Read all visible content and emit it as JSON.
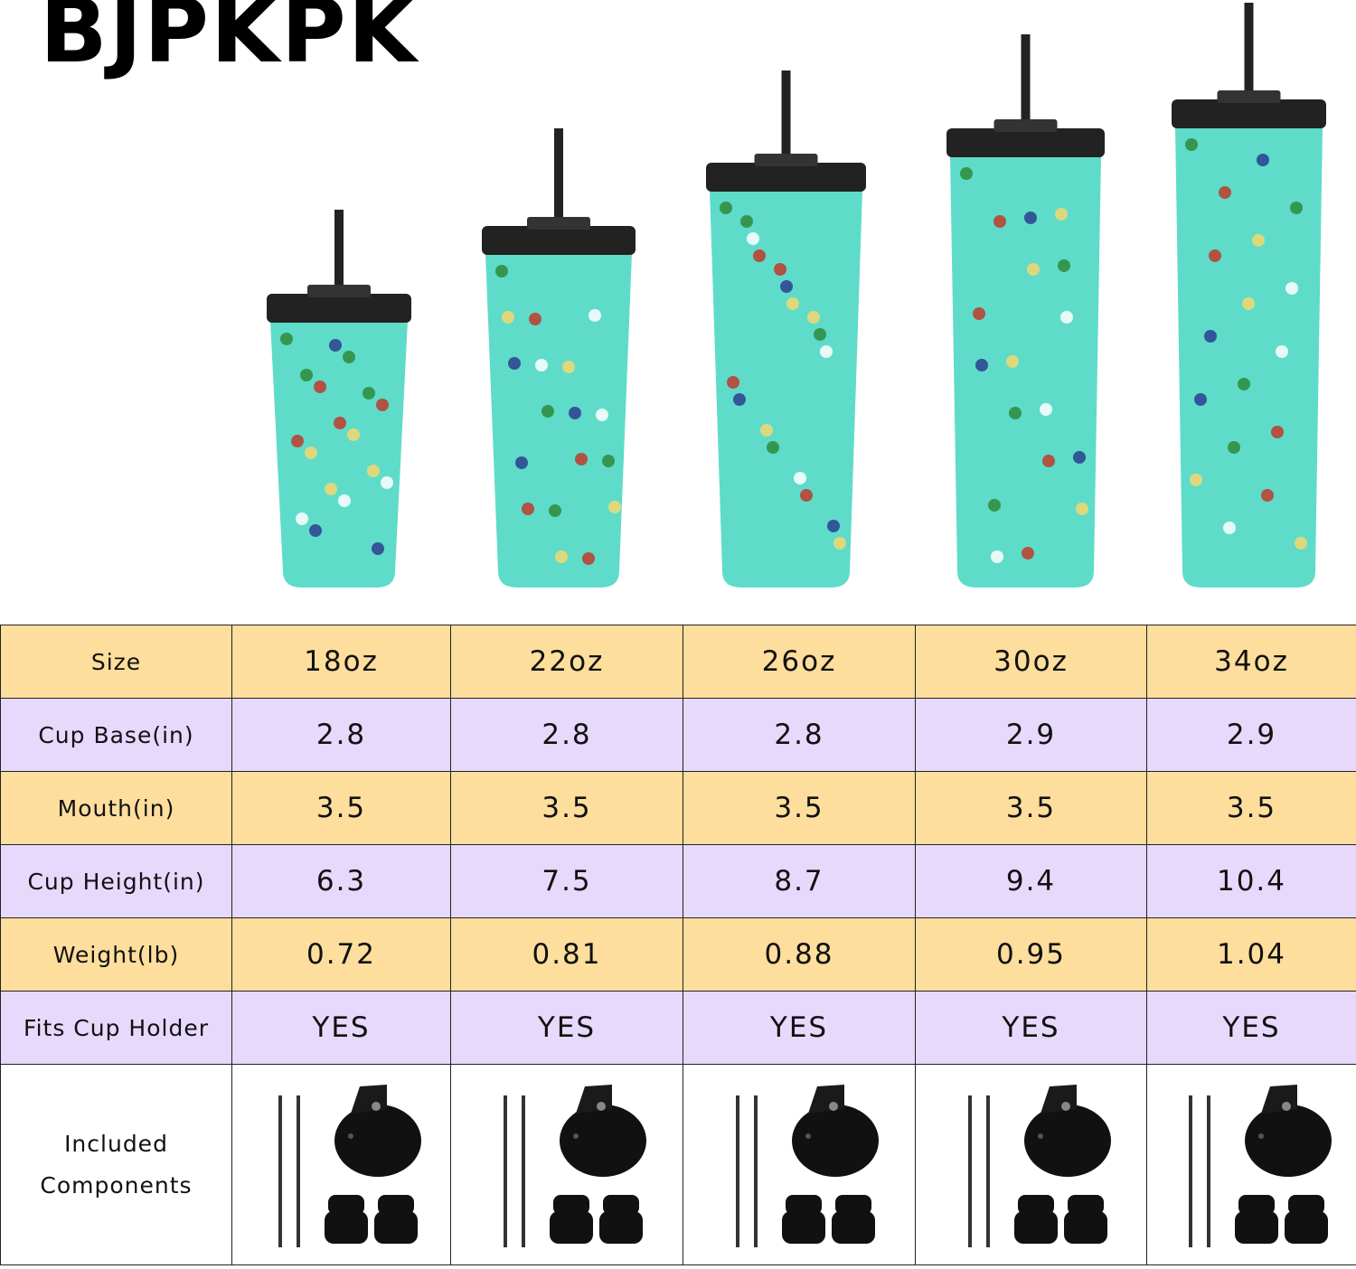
{
  "brand": {
    "logo_text": "BJPKPK"
  },
  "colors": {
    "header_row": "#FDDE9C",
    "alt_row": "#E6D9FC",
    "tumbler_body": "#5EDCC9",
    "lid": "#222222"
  },
  "products": [
    "18oz",
    "22oz",
    "26oz",
    "30oz",
    "34oz"
  ],
  "table": {
    "header": {
      "label": "Size",
      "values": [
        "18oz",
        "22oz",
        "26oz",
        "30oz",
        "34oz"
      ]
    },
    "rows": [
      {
        "label": "Cup Base(in)",
        "values": [
          "2.8",
          "2.8",
          "2.8",
          "2.9",
          "2.9"
        ]
      },
      {
        "label": "Mouth(in)",
        "values": [
          "3.5",
          "3.5",
          "3.5",
          "3.5",
          "3.5"
        ]
      },
      {
        "label": "Cup Height(in)",
        "values": [
          "6.3",
          "7.5",
          "8.7",
          "9.4",
          "10.4"
        ]
      },
      {
        "label": "Weight(lb)",
        "values": [
          "0.72",
          "0.81",
          "0.88",
          "0.95",
          "1.04"
        ]
      },
      {
        "label": "Fits Cup Holder",
        "values": [
          "YES",
          "YES",
          "YES",
          "YES",
          "YES"
        ]
      }
    ],
    "components": {
      "label_line1": "Included",
      "label_line2": "Components",
      "items": [
        "straw-icon",
        "straw-icon",
        "lid-icon",
        "plug-icon",
        "plug-icon"
      ]
    }
  }
}
